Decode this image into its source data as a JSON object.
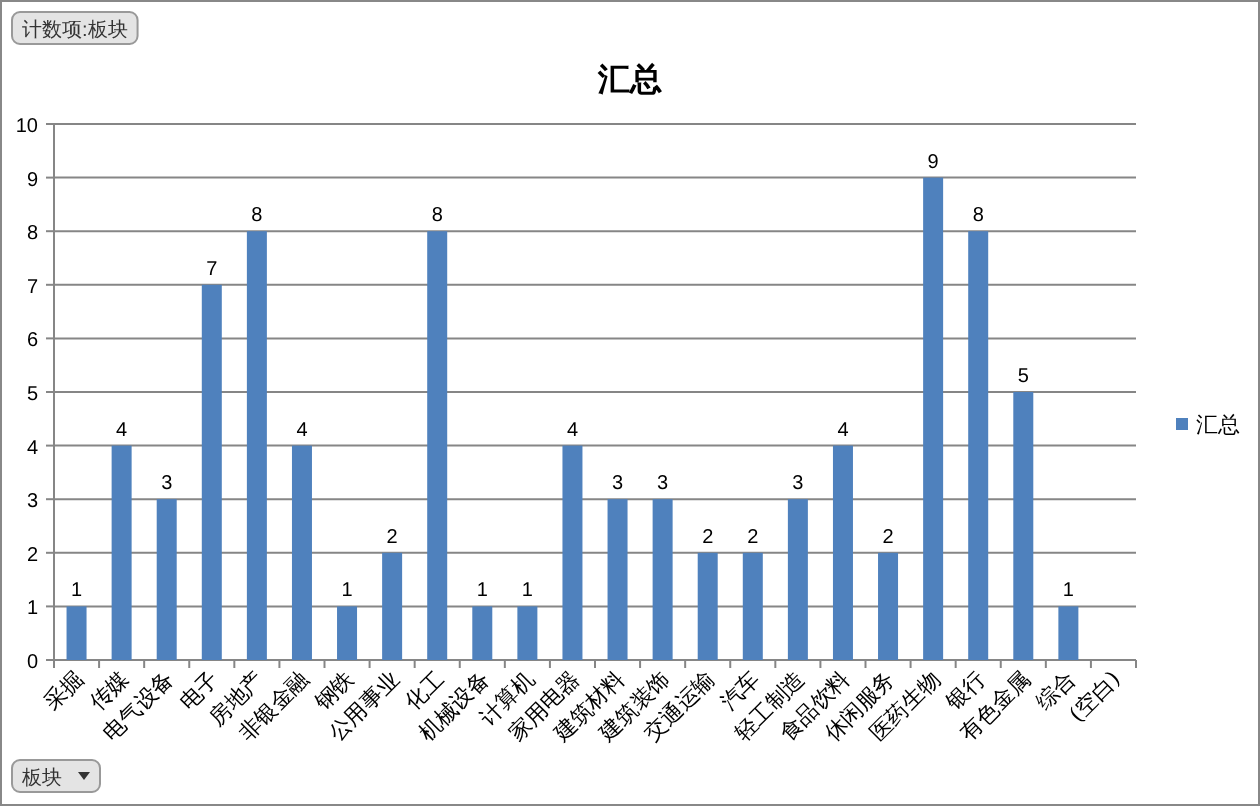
{
  "chart_data": {
    "type": "bar",
    "title": "汇总",
    "categories": [
      "采掘",
      "传媒",
      "电气设备",
      "电子",
      "房地产",
      "非银金融",
      "钢铁",
      "公用事业",
      "化工",
      "机械设备",
      "计算机",
      "家用电器",
      "建筑材料",
      "建筑装饰",
      "交通运输",
      "汽车",
      "轻工制造",
      "食品饮料",
      "休闲服务",
      "医药生物",
      "银行",
      "有色金属",
      "综合",
      "(空白)"
    ],
    "series": [
      {
        "name": "汇总",
        "color": "#4f81bd",
        "values": [
          1,
          4,
          3,
          7,
          8,
          4,
          1,
          2,
          8,
          1,
          1,
          4,
          3,
          3,
          2,
          2,
          3,
          4,
          2,
          9,
          8,
          5,
          1,
          null
        ]
      }
    ],
    "ylim": [
      0,
      10
    ],
    "yticks": [
      0,
      1,
      2,
      3,
      4,
      5,
      6,
      7,
      8,
      9,
      10
    ],
    "grid": "y",
    "legend": "right",
    "data_labels": true,
    "annotations": [
      "计数项:板块",
      "板块"
    ]
  }
}
